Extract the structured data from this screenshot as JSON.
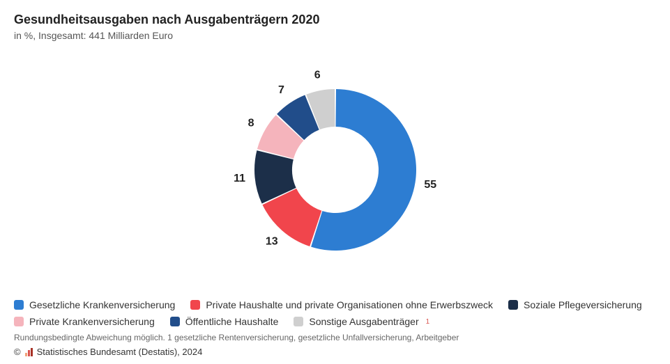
{
  "title": "Gesundheitsausgaben nach Ausgabenträgern 2020",
  "subtitle": "in %, Insgesamt: 441 Milliarden Euro",
  "chart": {
    "type": "donut",
    "start_angle_deg": 0,
    "inner_radius": 62,
    "outer_radius": 116,
    "label_radius": 138,
    "background_color": "#ffffff",
    "label_fontsize": 16,
    "label_fontweight": "700",
    "label_color": "#222222",
    "slices": [
      {
        "label": "Gesetzliche Krankenversicherung",
        "value": 55,
        "color": "#2d7dd2",
        "display": "55"
      },
      {
        "label": "Private Haushalte und private Organisationen ohne Erwerbszweck",
        "value": 13,
        "color": "#f1454c",
        "display": "13"
      },
      {
        "label": "Soziale Pflegeversicherung",
        "value": 11,
        "color": "#1c2f49",
        "display": "11"
      },
      {
        "label": "Private Krankenversicherung",
        "value": 8,
        "color": "#f5b4bc",
        "display": "8"
      },
      {
        "label": "Öffentliche Haushalte",
        "value": 7,
        "color": "#214d8a",
        "display": "7"
      },
      {
        "label": "Sonstige Ausgabenträger",
        "value": 6,
        "color": "#cfcfcf",
        "display": "6",
        "footnote": "1"
      }
    ]
  },
  "note": "Rundungsbedingte Abweichung möglich. 1 gesetzliche Rentenversicherung, gesetzliche Unfallversicherung, Arbeitgeber",
  "copyright": "© Statistisches Bundesamt (Destatis), 2024"
}
